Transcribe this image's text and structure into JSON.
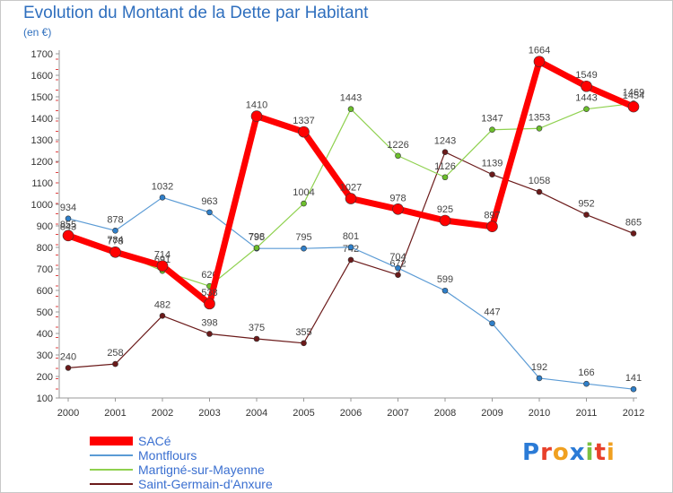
{
  "header": {
    "title": "Evolution du Montant de la Dette par Habitant",
    "unit": "(en €)"
  },
  "brand": {
    "text": "Proxiti",
    "letter_colors": [
      "#2b7bd6",
      "#e8402a",
      "#f0a020",
      "#2b7bd6",
      "#7bc142",
      "#e8402a",
      "#f0a020"
    ]
  },
  "chart_data": {
    "type": "line",
    "title": "Evolution du Montant de la Dette par Habitant",
    "subtitle": "(en €)",
    "xlabel": "",
    "ylabel": "",
    "x": [
      "2000",
      "2001",
      "2002",
      "2003",
      "2004",
      "2005",
      "2006",
      "2007",
      "2008",
      "2009",
      "2010",
      "2011",
      "2012"
    ],
    "ylim": [
      100,
      1700
    ],
    "yticks": [
      100,
      200,
      300,
      400,
      500,
      600,
      700,
      800,
      900,
      1000,
      1100,
      1200,
      1300,
      1400,
      1500,
      1600,
      1700
    ],
    "grid": false,
    "legend_position": "bottom-left",
    "series": [
      {
        "name": "Saint-Germain-d'Anxure",
        "color": "#6b1a1a",
        "marker_color": "#6b1a1a",
        "width": 1.2,
        "marker_radius": 3,
        "values": [
          240,
          258,
          482,
          398,
          375,
          355,
          742,
          672,
          1243,
          1139,
          1058,
          952,
          865
        ]
      },
      {
        "name": "Montflours",
        "color": "#5b9bd5",
        "marker_color": "#2f7fc9",
        "width": 1.2,
        "marker_radius": 3,
        "values": [
          934,
          878,
          1032,
          963,
          795,
          795,
          801,
          704,
          599,
          447,
          192,
          166,
          141
        ]
      },
      {
        "name": "Martigné-sur-Mayenne",
        "color": "#8fd14f",
        "marker_color": "#6cbf2c",
        "width": 1.2,
        "marker_radius": 3,
        "values": [
          843,
          784,
          691,
          620,
          798,
          1004,
          1443,
          1226,
          1126,
          1347,
          1353,
          1443,
          1469
        ]
      },
      {
        "name": "SACé",
        "color": "#ff0000",
        "marker_color": "#ff0000",
        "width": 7,
        "marker_radius": 6,
        "values": [
          855,
          778,
          714,
          538,
          1410,
          1337,
          1027,
          978,
          925,
          897,
          1664,
          1549,
          1454
        ]
      }
    ],
    "legend_order": [
      "SACé",
      "Montflours",
      "Martigné-sur-Mayenne",
      "Saint-Germain-d'Anxure"
    ]
  }
}
